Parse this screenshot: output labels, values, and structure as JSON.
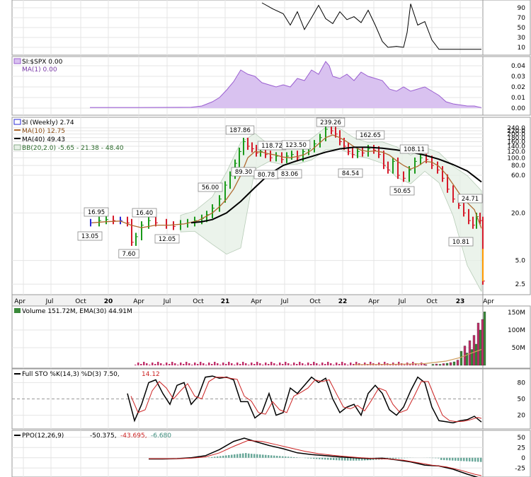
{
  "chart_data": [
    {
      "type": "line",
      "panel": "top-indicator",
      "axis_ticks": [
        "90",
        "70",
        "50",
        "30",
        "10"
      ],
      "ylim": [
        0,
        100
      ],
      "series": [
        {
          "color": "#000000",
          "x": [
            370,
            385,
            400,
            410,
            420,
            430,
            440,
            450,
            460,
            470,
            480,
            490,
            500,
            510,
            520,
            530,
            540,
            548,
            560,
            570,
            575,
            580,
            590,
            600,
            610,
            620,
            680
          ],
          "values": [
            100,
            88,
            78,
            55,
            82,
            46,
            70,
            95,
            68,
            58,
            82,
            66,
            72,
            60,
            85,
            55,
            22,
            10,
            12,
            10,
            40,
            98,
            55,
            62,
            25,
            6,
            6
          ]
        }
      ]
    },
    {
      "type": "area",
      "panel": "relative-strength",
      "legend": [
        "SI:$SPX 0.00",
        "MA(1) 0.00"
      ],
      "axis_ticks": [
        "0.04",
        "0.03",
        "0.02",
        "0.01",
        "0.00"
      ],
      "ylim": [
        -0.004,
        0.046
      ],
      "series": [
        {
          "color": "#a070d0",
          "x": [
            127,
            200,
            270,
            285,
            300,
            310,
            320,
            330,
            340,
            350,
            360,
            370,
            380,
            390,
            400,
            410,
            420,
            430,
            440,
            450,
            455,
            460,
            465,
            470,
            480,
            490,
            500,
            510,
            520,
            530,
            540,
            550,
            560,
            570,
            580,
            590,
            600,
            610,
            620,
            630,
            640,
            650,
            660,
            670,
            680
          ],
          "values": [
            0.0006,
            0.0006,
            0.0008,
            0.002,
            0.006,
            0.01,
            0.017,
            0.025,
            0.036,
            0.032,
            0.03,
            0.024,
            0.022,
            0.02,
            0.022,
            0.02,
            0.028,
            0.026,
            0.036,
            0.032,
            0.038,
            0.044,
            0.04,
            0.03,
            0.028,
            0.032,
            0.026,
            0.034,
            0.03,
            0.028,
            0.026,
            0.018,
            0.016,
            0.02,
            0.016,
            0.018,
            0.02,
            0.016,
            0.012,
            0.006,
            0.004,
            0.003,
            0.002,
            0.002,
            0.0005
          ]
        }
      ]
    },
    {
      "type": "line",
      "panel": "price",
      "scale": "log",
      "legend": [
        "SI (Weekly) 2.74",
        "MA(10) 12.75",
        "MA(40) 49.43",
        "BB(20,2.0) -5.65 - 21.38 - 48.40"
      ],
      "axis_ticks": [
        "2.5",
        "5.0",
        "20.0",
        "60.0",
        "80.0",
        "100.0",
        "120.0",
        "140.0",
        "160.0",
        "180.0",
        "200.0",
        "220.0",
        "240.0"
      ],
      "x_ticks": [
        "Apr",
        "Jul",
        "Oct",
        "20",
        "Apr",
        "Jul",
        "Oct",
        "21",
        "Apr",
        "Jul",
        "Oct",
        "22",
        "Apr",
        "Jul",
        "Oct",
        "23",
        "Apr"
      ],
      "annotations": [
        "16.95",
        "13.05",
        "7.60",
        "16.40",
        "12.05",
        "56.00",
        "89.30",
        "187.86",
        "118.72",
        "80.78",
        "123.50",
        "83.06",
        "239.26",
        "84.54",
        "162.65",
        "50.65",
        "108.11",
        "24.71",
        "10.81"
      ],
      "ylim": [
        2.0,
        300
      ],
      "series": [
        {
          "name": "SI (Weekly)",
          "x": [
            128,
            140,
            150,
            160,
            170,
            180,
            186,
            192,
            200,
            210,
            220,
            235,
            245,
            255,
            265,
            275,
            285,
            292,
            300,
            310,
            318,
            325,
            332,
            338,
            344,
            350,
            356,
            362,
            368,
            375,
            382,
            390,
            398,
            405,
            412,
            420,
            428,
            436,
            444,
            452,
            460,
            468,
            474,
            480,
            486,
            492,
            498,
            505,
            512,
            520,
            528,
            535,
            542,
            548,
            555,
            562,
            570,
            578,
            586,
            594,
            602,
            610,
            618,
            625,
            632,
            640,
            648,
            655,
            662,
            668,
            673,
            678,
            682
          ],
          "values": [
            15,
            16,
            16.5,
            16,
            16,
            15,
            8.5,
            10,
            14,
            16,
            15,
            14,
            13.5,
            14.5,
            15,
            16,
            17,
            19,
            23,
            30,
            45,
            60,
            85,
            120,
            160,
            140,
            130,
            115,
            120,
            110,
            100,
            105,
            95,
            105,
            110,
            100,
            120,
            130,
            150,
            180,
            230,
            220,
            200,
            160,
            140,
            120,
            110,
            120,
            115,
            130,
            125,
            110,
            80,
            70,
            90,
            60,
            55,
            70,
            90,
            100,
            95,
            80,
            70,
            55,
            40,
            30,
            25,
            20,
            16,
            14,
            18,
            16,
            2.74
          ]
        },
        {
          "name": "MA(10)",
          "color": "#b06a30",
          "x": [
            130,
            150,
            170,
            185,
            200,
            220,
            240,
            260,
            280,
            300,
            310,
            320,
            330,
            340,
            350,
            360,
            370,
            380,
            390,
            400,
            410,
            420,
            430,
            440,
            450,
            460,
            470,
            480,
            490,
            500,
            510,
            520,
            530,
            540,
            550,
            560,
            570,
            580,
            590,
            600,
            610,
            620,
            630,
            640,
            650,
            660,
            670,
            680
          ],
          "values": [
            15,
            15.5,
            15.8,
            14,
            13,
            14,
            14,
            14.5,
            16,
            20,
            24,
            30,
            40,
            60,
            100,
            120,
            118,
            112,
            108,
            102,
            100,
            104,
            110,
            125,
            150,
            180,
            195,
            180,
            160,
            138,
            125,
            120,
            122,
            118,
            108,
            92,
            80,
            72,
            78,
            90,
            88,
            78,
            62,
            46,
            34,
            27,
            22,
            12.75
          ]
        },
        {
          "name": "MA(40)",
          "color": "#000000",
          "x": [
            270,
            285,
            300,
            320,
            340,
            360,
            380,
            400,
            420,
            440,
            460,
            480,
            500,
            520,
            540,
            560,
            580,
            600,
            620,
            640,
            660,
            670,
            680
          ],
          "values": [
            15,
            15.5,
            16.5,
            20,
            28,
            42,
            62,
            80,
            92,
            104,
            118,
            130,
            136,
            136,
            132,
            126,
            118,
            108,
            96,
            82,
            68,
            58,
            49.43
          ]
        }
      ]
    },
    {
      "type": "bar",
      "panel": "volume",
      "legend": "Volume 151.72M, EMA(30) 44.91M",
      "axis_ticks": [
        "150M",
        "100M",
        "50M"
      ],
      "ylim": [
        0,
        160
      ],
      "values": [
        2,
        3,
        4,
        3,
        5,
        6,
        8,
        10,
        15,
        40,
        55,
        35,
        70,
        45,
        85,
        60,
        120,
        100,
        130,
        151.72
      ],
      "x": [
        600,
        610,
        615,
        620,
        625,
        630,
        635,
        640,
        645,
        650,
        655,
        658,
        662,
        665,
        668,
        671,
        674,
        677,
        680,
        683
      ]
    },
    {
      "type": "line",
      "panel": "stochastic",
      "legend": [
        "Full STO %K(14,3) %D(3) 7.50,",
        "14.12"
      ],
      "axis_ticks": [
        "80",
        "50",
        "20"
      ],
      "ylim": [
        0,
        100
      ],
      "series": [
        {
          "name": "%K",
          "color": "#000000",
          "x": [
            180,
            190,
            200,
            210,
            220,
            230,
            240,
            250,
            260,
            270,
            280,
            290,
            300,
            310,
            320,
            330,
            340,
            350,
            360,
            370,
            380,
            390,
            400,
            410,
            420,
            430,
            440,
            450,
            460,
            470,
            480,
            490,
            500,
            510,
            520,
            530,
            540,
            550,
            560,
            570,
            580,
            590,
            600,
            610,
            620,
            630,
            640,
            650,
            660,
            670,
            680
          ],
          "values": [
            60,
            10,
            40,
            80,
            85,
            60,
            40,
            75,
            80,
            40,
            55,
            90,
            92,
            88,
            90,
            85,
            45,
            45,
            15,
            25,
            60,
            20,
            25,
            70,
            60,
            75,
            90,
            80,
            88,
            50,
            25,
            35,
            40,
            20,
            60,
            75,
            60,
            30,
            20,
            35,
            65,
            90,
            80,
            35,
            10,
            8,
            6,
            10,
            12,
            18,
            7.5
          ]
        },
        {
          "name": "%D",
          "color": "#cc2222",
          "x": [
            185,
            195,
            205,
            215,
            225,
            235,
            245,
            255,
            265,
            275,
            285,
            295,
            305,
            315,
            325,
            335,
            345,
            355,
            365,
            375,
            385,
            395,
            405,
            415,
            425,
            435,
            445,
            455,
            465,
            475,
            485,
            495,
            505,
            515,
            525,
            535,
            545,
            555,
            565,
            575,
            585,
            595,
            605,
            615,
            625,
            635,
            645,
            655,
            665,
            675,
            680
          ],
          "values": [
            55,
            25,
            30,
            65,
            82,
            70,
            50,
            65,
            78,
            55,
            50,
            82,
            90,
            90,
            88,
            86,
            55,
            46,
            25,
            22,
            45,
            30,
            25,
            55,
            62,
            70,
            85,
            82,
            85,
            60,
            35,
            32,
            38,
            28,
            48,
            70,
            65,
            40,
            25,
            30,
            55,
            82,
            82,
            50,
            20,
            10,
            8,
            9,
            12,
            16,
            14.12
          ]
        }
      ]
    },
    {
      "type": "line",
      "panel": "ppo",
      "legend": [
        "PPO(12,26,9)",
        "-50.375,",
        "-43.695,",
        "-6.680"
      ],
      "axis_ticks": [
        "50",
        "25",
        "0",
        "-25"
      ],
      "ylim": [
        -40,
        60
      ],
      "series": [
        {
          "name": "PPO",
          "color": "#000000",
          "x": [
            210,
            230,
            250,
            270,
            290,
            310,
            330,
            345,
            360,
            380,
            400,
            420,
            440,
            460,
            480,
            500,
            520,
            540,
            560,
            580,
            600,
            620,
            640,
            660,
            680
          ],
          "values": [
            -3,
            -3,
            -2,
            0,
            5,
            20,
            40,
            48,
            40,
            30,
            22,
            12,
            8,
            5,
            2,
            0,
            -2,
            -1,
            -5,
            -10,
            -18,
            -20,
            -28,
            -40,
            -50.375
          ]
        },
        {
          "name": "Signal",
          "color": "#cc2222",
          "x": [
            210,
            230,
            250,
            270,
            290,
            310,
            330,
            350,
            370,
            390,
            410,
            430,
            450,
            470,
            490,
            510,
            530,
            550,
            570,
            590,
            610,
            630,
            650,
            670,
            680
          ],
          "values": [
            -2,
            -2,
            -2,
            -1,
            2,
            12,
            28,
            42,
            40,
            32,
            24,
            16,
            10,
            6,
            3,
            0,
            -2,
            -3,
            -6,
            -12,
            -18,
            -22,
            -30,
            -40,
            -43.695
          ]
        }
      ]
    }
  ]
}
